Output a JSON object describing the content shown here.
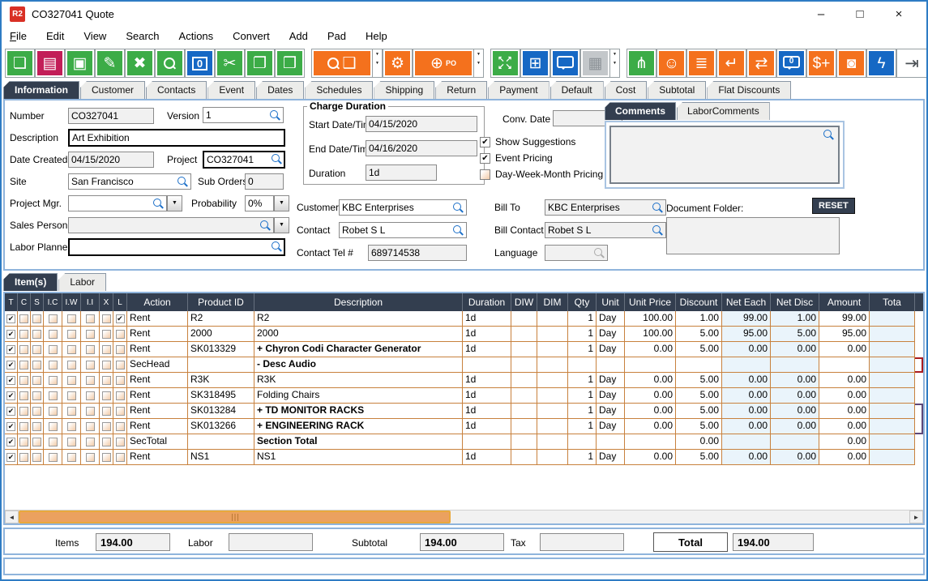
{
  "window": {
    "title": "CO327041 Quote",
    "app_logo": "R2",
    "controls": [
      {
        "name": "minimize",
        "glyph": "–"
      },
      {
        "name": "maximize",
        "glyph": "□"
      },
      {
        "name": "close",
        "glyph": "×"
      }
    ]
  },
  "menu": {
    "items": [
      "File",
      "Edit",
      "View",
      "Search",
      "Actions",
      "Convert",
      "Add",
      "Pad",
      "Help"
    ]
  },
  "colors": {
    "green": "#3CAC47",
    "crimson": "#C21E58",
    "blue": "#1668C4",
    "orange": "#F4711D",
    "gray": "#C3C7CA",
    "tab_active": "#333E4F",
    "grid_line": "#C8813D",
    "outline_red": "#AA1B1F",
    "outline_purple": "#5D4777",
    "scroll_thumb": "#EBA15F",
    "net_column_bg": "#EAF4FB"
  },
  "icons": {
    "dropdown": "▼",
    "check": "✔",
    "exit": "⇥",
    "scroll_left": "◄",
    "scroll_right": "►"
  },
  "toolbar": {
    "buttons": [
      {
        "name": "new-document-button",
        "icon": "new-document-icon",
        "type": "glyph",
        "glyph": "❏",
        "color": "green"
      },
      {
        "name": "print-button",
        "icon": "printer-icon",
        "type": "glyph",
        "glyph": "▤",
        "color": "crimson"
      },
      {
        "name": "save-button",
        "icon": "save-icon",
        "type": "glyph",
        "glyph": "▣",
        "color": "green"
      },
      {
        "name": "edit-button",
        "icon": "pencil-icon",
        "type": "glyph",
        "glyph": "✎",
        "color": "green"
      },
      {
        "name": "delete-button",
        "icon": "delete-x-icon",
        "type": "glyph",
        "glyph": "✖",
        "color": "green"
      },
      {
        "name": "search-button",
        "icon": "search-icon",
        "type": "mag",
        "glyph": "",
        "color": "green"
      },
      {
        "name": "copies-button",
        "icon": "copies-zero-icon",
        "type": "boxed",
        "glyph": "0",
        "color": "blue"
      },
      {
        "name": "cut-button",
        "icon": "scissors-icon",
        "type": "glyph",
        "glyph": "✂",
        "color": "green"
      },
      {
        "name": "copy-button",
        "icon": "copy-icon",
        "type": "glyph",
        "glyph": "❐",
        "color": "green"
      },
      {
        "name": "paste-button",
        "icon": "clipboard-icon",
        "type": "glyph",
        "glyph": "❒",
        "color": "green"
      },
      {
        "name": "search-product-button",
        "icon": "search-product-icon",
        "type": "mag-box",
        "glyph": "❑",
        "color": "orange",
        "wide": true,
        "dropdown": true,
        "gap": true
      },
      {
        "name": "gears-button",
        "icon": "gears-icon",
        "type": "glyph",
        "glyph": "⚙",
        "color": "orange"
      },
      {
        "name": "add-po-button",
        "icon": "add-po-cart-icon",
        "type": "plus-text",
        "glyph": "⊕",
        "text": "PO",
        "color": "orange",
        "wide": true,
        "dropdown": true
      },
      {
        "name": "expand-button",
        "icon": "expand-arrows-icon",
        "type": "expand",
        "glyph": "↖↗↙↘",
        "color": "green",
        "gap": true
      },
      {
        "name": "layout-blocks-button",
        "icon": "blocks-icon",
        "type": "glyph",
        "glyph": "⊞",
        "color": "blue"
      },
      {
        "name": "comment-button",
        "icon": "speech-bubble-icon",
        "type": "bubble",
        "glyph": "",
        "color": "blue"
      },
      {
        "name": "calendar-button",
        "icon": "calendar-icon",
        "type": "glyph",
        "glyph": "▦",
        "color": "gray",
        "disabled": true,
        "dropdown": true
      },
      {
        "name": "hierarchy-button",
        "icon": "hierarchy-icon",
        "type": "glyph",
        "glyph": "⋔",
        "color": "green",
        "gap": true
      },
      {
        "name": "smiley-button",
        "icon": "smiley-icon",
        "type": "glyph",
        "glyph": "☺",
        "color": "orange"
      },
      {
        "name": "list-scroll-button",
        "icon": "scroll-list-icon",
        "type": "glyph",
        "glyph": "≣",
        "color": "orange"
      },
      {
        "name": "return-button",
        "icon": "return-arrow-icon",
        "type": "glyph",
        "glyph": "↵",
        "color": "orange"
      },
      {
        "name": "exchange-button",
        "icon": "box-exchange-icon",
        "type": "glyph",
        "glyph": "⇄",
        "color": "orange"
      },
      {
        "name": "note-count-button",
        "icon": "bubble-zero-icon",
        "type": "bubble",
        "glyph": "0",
        "color": "blue"
      },
      {
        "name": "add-money-button",
        "icon": "coins-add-icon",
        "type": "glyph",
        "glyph": "$+",
        "color": "orange"
      },
      {
        "name": "vault-button",
        "icon": "safe-icon",
        "type": "glyph",
        "glyph": "◙",
        "color": "orange"
      },
      {
        "name": "flash-button",
        "icon": "lightning-icon",
        "type": "glyph",
        "glyph": "ϟ",
        "color": "blue"
      }
    ]
  },
  "tabs": {
    "active": "Information",
    "items": [
      "Information",
      "Customer",
      "Contacts",
      "Event",
      "Dates",
      "Schedules",
      "Shipping",
      "Return",
      "Payment",
      "Default",
      "Cost",
      "Subtotal",
      "Flat Discounts"
    ]
  },
  "form": {
    "number": {
      "label": "Number",
      "value": "CO327041"
    },
    "version": {
      "label": "Version",
      "value": "1"
    },
    "description": {
      "label": "Description",
      "value": "Art Exhibition"
    },
    "date_created": {
      "label": "Date Created",
      "value": "04/15/2020"
    },
    "project": {
      "label": "Project",
      "value": "CO327041"
    },
    "site": {
      "label": "Site",
      "value": "San Francisco"
    },
    "sub_orders": {
      "label": "Sub Orders",
      "value": "0"
    },
    "project_mgr": {
      "label": "Project Mgr.",
      "value": ""
    },
    "probability": {
      "label": "Probability",
      "value": "0%"
    },
    "sales_person": {
      "label": "Sales Person",
      "value": ""
    },
    "labor_planner": {
      "label": "Labor Planner",
      "value": ""
    },
    "charge_duration": {
      "legend": "Charge Duration",
      "start": {
        "label": "Start Date/Time",
        "value": "04/15/2020"
      },
      "end": {
        "label": "End Date/Time",
        "value": "04/16/2020"
      },
      "duration": {
        "label": "Duration",
        "value": "1d"
      }
    },
    "conv_date": {
      "label": "Conv. Date",
      "value": ""
    },
    "options": [
      {
        "label": "Show Suggestions",
        "checked": true
      },
      {
        "label": "Event Pricing",
        "checked": true
      },
      {
        "label": "Day-Week-Month Pricing",
        "checked": false
      }
    ],
    "customer": {
      "label": "Customer",
      "value": "KBC Enterprises"
    },
    "bill_to": {
      "label": "Bill To",
      "value": "KBC Enterprises"
    },
    "contact": {
      "label": "Contact",
      "value": "Robet S L"
    },
    "bill_contact": {
      "label": "Bill Contact",
      "value": "Robet S L"
    },
    "contact_tel": {
      "label": "Contact Tel #",
      "value": "689714538"
    },
    "language": {
      "label": "Language",
      "value": ""
    },
    "comments": {
      "tabs": [
        "Comments",
        "LaborComments"
      ],
      "active": "Comments",
      "document_folder_label": "Document Folder:",
      "reset_label": "RESET"
    }
  },
  "items_section": {
    "tabs": [
      "Item(s)",
      "Labor"
    ],
    "active": "Item(s)"
  },
  "items_table": {
    "check_headers": [
      "T",
      "C",
      "S",
      "I.C",
      "I.W",
      "I.I",
      "X",
      "L"
    ],
    "headers": [
      "Action",
      "Product ID",
      "Description",
      "Duration",
      "DIW",
      "DIM",
      "Qty",
      "Unit",
      "Unit Price",
      "Discount",
      "Net Each",
      "Net Disc",
      "Amount",
      "Tota"
    ],
    "rows": [
      {
        "checks": [
          true,
          false,
          false,
          false,
          false,
          false,
          false,
          true
        ],
        "bold": false,
        "outline": "",
        "cells": [
          "Rent",
          "R2",
          "R2",
          "1d",
          "",
          "",
          "1",
          "Day",
          "100.00",
          "1.00",
          "99.00",
          "1.00",
          "99.00",
          ""
        ]
      },
      {
        "checks": [
          true,
          false,
          false,
          false,
          false,
          false,
          false,
          false
        ],
        "bold": false,
        "outline": "",
        "cells": [
          "Rent",
          "2000",
          "2000",
          "1d",
          "",
          "",
          "1",
          "Day",
          "100.00",
          "5.00",
          "95.00",
          "5.00",
          "95.00",
          ""
        ]
      },
      {
        "checks": [
          true,
          false,
          false,
          false,
          false,
          false,
          false,
          false
        ],
        "bold": true,
        "outline": "",
        "cells": [
          "Rent",
          "SK013329",
          "+  Chyron Codi Character Generator",
          "1d",
          "",
          "",
          "1",
          "Day",
          "0.00",
          "5.00",
          "0.00",
          "0.00",
          "0.00",
          ""
        ]
      },
      {
        "checks": [
          true,
          false,
          false,
          false,
          false,
          false,
          false,
          false
        ],
        "bold": true,
        "outline": "red",
        "cells": [
          "SecHead",
          "",
          "-  Desc Audio",
          "",
          "",
          "",
          "",
          "",
          "",
          "",
          "",
          "",
          "",
          ""
        ]
      },
      {
        "checks": [
          true,
          false,
          false,
          false,
          false,
          false,
          false,
          false
        ],
        "bold": false,
        "outline": "",
        "cells": [
          "Rent",
          "R3K",
          "R3K",
          "1d",
          "",
          "",
          "1",
          "Day",
          "0.00",
          "5.00",
          "0.00",
          "0.00",
          "0.00",
          ""
        ]
      },
      {
        "checks": [
          true,
          false,
          false,
          false,
          false,
          false,
          false,
          false
        ],
        "bold": false,
        "outline": "",
        "cells": [
          "Rent",
          "SK318495",
          "Folding Chairs",
          "1d",
          "",
          "",
          "1",
          "Day",
          "0.00",
          "5.00",
          "0.00",
          "0.00",
          "0.00",
          ""
        ]
      },
      {
        "checks": [
          true,
          false,
          false,
          false,
          false,
          false,
          false,
          false
        ],
        "bold": true,
        "outline": "purple-top",
        "cells": [
          "Rent",
          "SK013284",
          "+  TD MONITOR RACKS",
          "1d",
          "",
          "",
          "1",
          "Day",
          "0.00",
          "5.00",
          "0.00",
          "0.00",
          "0.00",
          ""
        ]
      },
      {
        "checks": [
          true,
          false,
          false,
          false,
          false,
          false,
          false,
          false
        ],
        "bold": true,
        "outline": "purple-bottom",
        "cells": [
          "Rent",
          "SK013266",
          "+  ENGINEERING RACK",
          "1d",
          "",
          "",
          "1",
          "Day",
          "0.00",
          "5.00",
          "0.00",
          "0.00",
          "0.00",
          ""
        ]
      },
      {
        "checks": [
          true,
          false,
          false,
          false,
          false,
          false,
          false,
          false
        ],
        "bold": true,
        "outline": "",
        "cells": [
          "SecTotal",
          "",
          "Section Total",
          "",
          "",
          "",
          "",
          "",
          "",
          "0.00",
          "",
          "",
          "0.00",
          ""
        ]
      },
      {
        "checks": [
          true,
          false,
          false,
          false,
          false,
          false,
          false,
          false
        ],
        "bold": false,
        "outline": "",
        "cells": [
          "Rent",
          "NS1",
          "NS1",
          "1d",
          "",
          "",
          "1",
          "Day",
          "0.00",
          "5.00",
          "0.00",
          "0.00",
          "0.00",
          ""
        ]
      }
    ]
  },
  "totals": {
    "items": {
      "label": "Items",
      "value": "194.00"
    },
    "labor": {
      "label": "Labor",
      "value": ""
    },
    "subtotal": {
      "label": "Subtotal",
      "value": "194.00"
    },
    "tax": {
      "label": "Tax",
      "value": ""
    },
    "total": {
      "label": "Total",
      "value": "194.00"
    }
  }
}
